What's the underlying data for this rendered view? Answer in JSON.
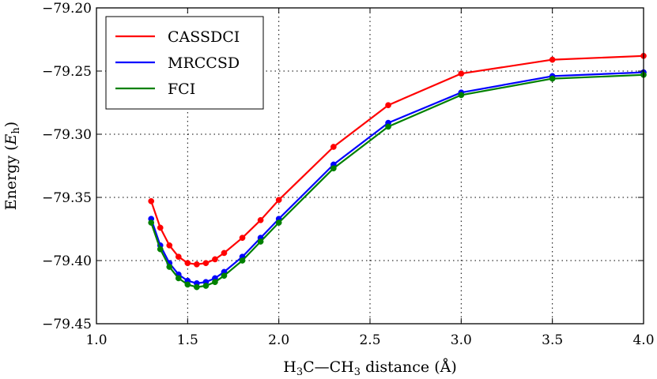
{
  "chart_data": {
    "type": "line",
    "title": "",
    "xlabel_parts": [
      "H",
      "3",
      "C—CH",
      "3",
      " distance (Å)"
    ],
    "ylabel_parts": [
      "Energy (",
      "E",
      "h",
      ")"
    ],
    "xlim": [
      1.0,
      4.0
    ],
    "ylim": [
      -79.45,
      -79.2
    ],
    "xticks": [
      1.0,
      1.5,
      2.0,
      2.5,
      3.0,
      3.5,
      4.0
    ],
    "xtick_labels": [
      "1.0",
      "1.5",
      "2.0",
      "2.5",
      "3.0",
      "3.5",
      "4.0"
    ],
    "yticks": [
      -79.45,
      -79.4,
      -79.35,
      -79.3,
      -79.25,
      -79.2
    ],
    "ytick_labels": [
      "−79.45",
      "−79.40",
      "−79.35",
      "−79.30",
      "−79.25",
      "−79.20"
    ],
    "grid": true,
    "grid_style": "dotted",
    "legend_position": "top-left",
    "x": [
      1.3,
      1.35,
      1.4,
      1.45,
      1.5,
      1.55,
      1.6,
      1.65,
      1.7,
      1.8,
      1.9,
      2.0,
      2.3,
      2.6,
      3.0,
      3.5,
      4.0
    ],
    "series": [
      {
        "name": "CASSDCI",
        "color": "#ff0000",
        "values": [
          -79.353,
          -79.374,
          -79.388,
          -79.397,
          -79.402,
          -79.403,
          -79.402,
          -79.399,
          -79.394,
          -79.382,
          -79.368,
          -79.352,
          -79.31,
          -79.277,
          -79.252,
          -79.241,
          -79.238
        ]
      },
      {
        "name": "MRCCSD",
        "color": "#0000ff",
        "values": [
          -79.367,
          -79.388,
          -79.402,
          -79.411,
          -79.416,
          -79.418,
          -79.417,
          -79.414,
          -79.409,
          -79.397,
          -79.382,
          -79.367,
          -79.324,
          -79.291,
          -79.267,
          -79.254,
          -79.251
        ]
      },
      {
        "name": "FCI",
        "color": "#008000",
        "values": [
          -79.37,
          -79.391,
          -79.405,
          -79.414,
          -79.419,
          -79.421,
          -79.42,
          -79.417,
          -79.412,
          -79.4,
          -79.385,
          -79.37,
          -79.327,
          -79.294,
          -79.269,
          -79.256,
          -79.253
        ]
      }
    ]
  }
}
